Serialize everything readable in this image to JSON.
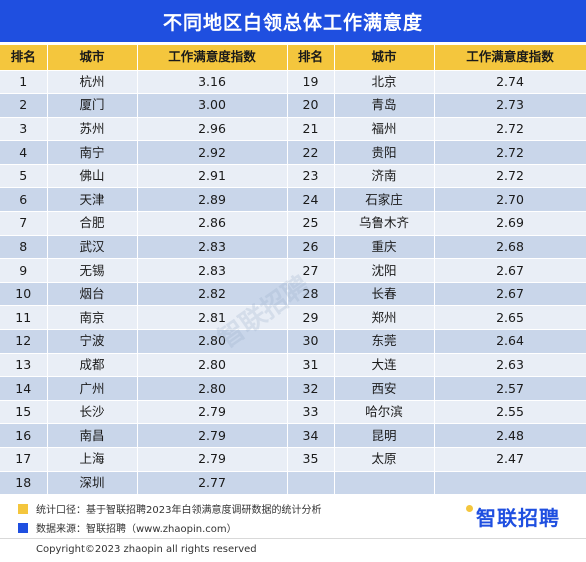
{
  "title": "不同地区白领总体工作满意度",
  "headers": [
    "排名",
    "城市",
    "工作满意度指数",
    "排名",
    "城市",
    "工作满意度指数"
  ],
  "left_rows": [
    {
      "rank": "1",
      "city": "杭州",
      "index": "3.16"
    },
    {
      "rank": "2",
      "city": "厦门",
      "index": "3.00"
    },
    {
      "rank": "3",
      "city": "苏州",
      "index": "2.96"
    },
    {
      "rank": "4",
      "city": "南宁",
      "index": "2.92"
    },
    {
      "rank": "5",
      "city": "佛山",
      "index": "2.91"
    },
    {
      "rank": "6",
      "city": "天津",
      "index": "2.89"
    },
    {
      "rank": "7",
      "city": "合肥",
      "index": "2.86"
    },
    {
      "rank": "8",
      "city": "武汉",
      "index": "2.83"
    },
    {
      "rank": "9",
      "city": "无锡",
      "index": "2.83"
    },
    {
      "rank": "10",
      "city": "烟台",
      "index": "2.82"
    },
    {
      "rank": "11",
      "city": "南京",
      "index": "2.81"
    },
    {
      "rank": "12",
      "city": "宁波",
      "index": "2.80"
    },
    {
      "rank": "13",
      "city": "成都",
      "index": "2.80"
    },
    {
      "rank": "14",
      "city": "广州",
      "index": "2.80"
    },
    {
      "rank": "15",
      "city": "长沙",
      "index": "2.79"
    },
    {
      "rank": "16",
      "city": "南昌",
      "index": "2.79"
    },
    {
      "rank": "17",
      "city": "上海",
      "index": "2.79"
    },
    {
      "rank": "18",
      "city": "深圳",
      "index": "2.77"
    }
  ],
  "right_rows": [
    {
      "rank": "19",
      "city": "北京",
      "index": "2.74"
    },
    {
      "rank": "20",
      "city": "青岛",
      "index": "2.73"
    },
    {
      "rank": "21",
      "city": "福州",
      "index": "2.72"
    },
    {
      "rank": "22",
      "city": "贵阳",
      "index": "2.72"
    },
    {
      "rank": "23",
      "city": "济南",
      "index": "2.72"
    },
    {
      "rank": "24",
      "city": "石家庄",
      "index": "2.70"
    },
    {
      "rank": "25",
      "city": "乌鲁木齐",
      "index": "2.69"
    },
    {
      "rank": "26",
      "city": "重庆",
      "index": "2.68"
    },
    {
      "rank": "27",
      "city": "沈阳",
      "index": "2.67"
    },
    {
      "rank": "28",
      "city": "长春",
      "index": "2.67"
    },
    {
      "rank": "29",
      "city": "郑州",
      "index": "2.65"
    },
    {
      "rank": "30",
      "city": "东莞",
      "index": "2.64"
    },
    {
      "rank": "31",
      "city": "大连",
      "index": "2.63"
    },
    {
      "rank": "32",
      "city": "西安",
      "index": "2.57"
    },
    {
      "rank": "33",
      "city": "哈尔滨",
      "index": "2.55"
    },
    {
      "rank": "34",
      "city": "昆明",
      "index": "2.48"
    },
    {
      "rank": "35",
      "city": "太原",
      "index": "2.47"
    }
  ],
  "notes": {
    "method": "统计口径：基于智联招聘2023年白领满意度调研数据的统计分析",
    "source": "数据来源：智联招聘（www.zhaopin.com）"
  },
  "brand": "智联招聘",
  "watermark": "智联招聘",
  "copyright": "Copyright©2023 zhaopin all rights reserved",
  "colors": {
    "title_bg": "#1f4fe0",
    "header_bg": "#f4c63d",
    "row_light": "#e9eef6",
    "row_dark": "#c9d6ea"
  }
}
